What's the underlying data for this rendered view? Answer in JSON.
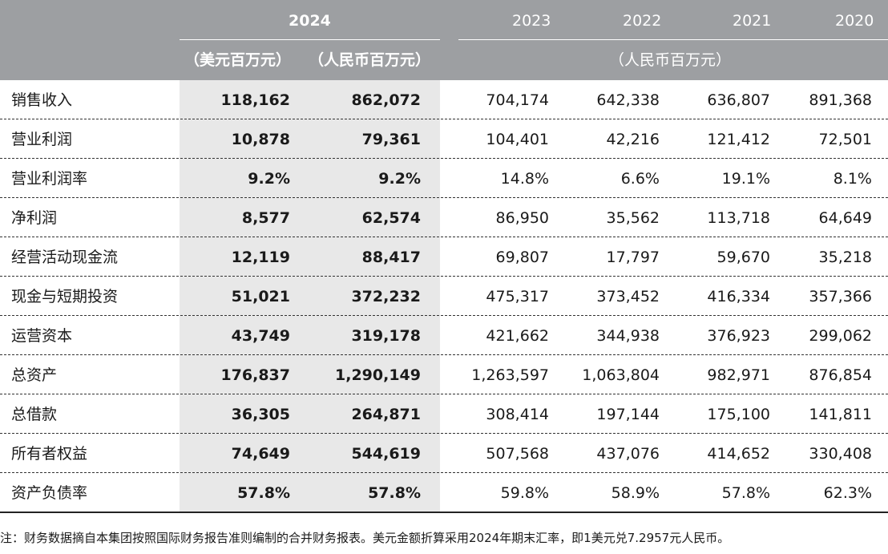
{
  "header": {
    "year_2024": "2024",
    "year_2023": "2023",
    "year_2022": "2022",
    "year_2021": "2021",
    "year_2020": "2020",
    "unit_usd": "（美元百万元）",
    "unit_rmb": "（人民币百万元）",
    "unit_rmb_history": "（人民币百万元）"
  },
  "rows": [
    {
      "label": "销售收入",
      "usd2024": "118,162",
      "rmb2024": "862,072",
      "y2023": "704,174",
      "y2022": "642,338",
      "y2021": "636,807",
      "y2020": "891,368"
    },
    {
      "label": "营业利润",
      "usd2024": "10,878",
      "rmb2024": "79,361",
      "y2023": "104,401",
      "y2022": "42,216",
      "y2021": "121,412",
      "y2020": "72,501"
    },
    {
      "label": "营业利润率",
      "usd2024": "9.2%",
      "rmb2024": "9.2%",
      "y2023": "14.8%",
      "y2022": "6.6%",
      "y2021": "19.1%",
      "y2020": "8.1%"
    },
    {
      "label": "净利润",
      "usd2024": "8,577",
      "rmb2024": "62,574",
      "y2023": "86,950",
      "y2022": "35,562",
      "y2021": "113,718",
      "y2020": "64,649"
    },
    {
      "label": "经营活动现金流",
      "usd2024": "12,119",
      "rmb2024": "88,417",
      "y2023": "69,807",
      "y2022": "17,797",
      "y2021": "59,670",
      "y2020": "35,218"
    },
    {
      "label": "现金与短期投资",
      "usd2024": "51,021",
      "rmb2024": "372,232",
      "y2023": "475,317",
      "y2022": "373,452",
      "y2021": "416,334",
      "y2020": "357,366"
    },
    {
      "label": "运营资本",
      "usd2024": "43,749",
      "rmb2024": "319,178",
      "y2023": "421,662",
      "y2022": "344,938",
      "y2021": "376,923",
      "y2020": "299,062"
    },
    {
      "label": "总资产",
      "usd2024": "176,837",
      "rmb2024": "1,290,149",
      "y2023": "1,263,597",
      "y2022": "1,063,804",
      "y2021": "982,971",
      "y2020": "876,854"
    },
    {
      "label": "总借款",
      "usd2024": "36,305",
      "rmb2024": "264,871",
      "y2023": "308,414",
      "y2022": "197,144",
      "y2021": "175,100",
      "y2020": "141,811"
    },
    {
      "label": "所有者权益",
      "usd2024": "74,649",
      "rmb2024": "544,619",
      "y2023": "507,568",
      "y2022": "437,076",
      "y2021": "414,652",
      "y2020": "330,408"
    },
    {
      "label": "资产负债率",
      "usd2024": "57.8%",
      "rmb2024": "57.8%",
      "y2023": "59.8%",
      "y2022": "58.9%",
      "y2021": "57.8%",
      "y2020": "62.3%"
    }
  ],
  "note": "注：财务数据摘自本集团按照国际财务报告准则编制的合并财务报表。美元金额折算采用2024年期末汇率，即1美元兑7.2957元人民币。"
}
